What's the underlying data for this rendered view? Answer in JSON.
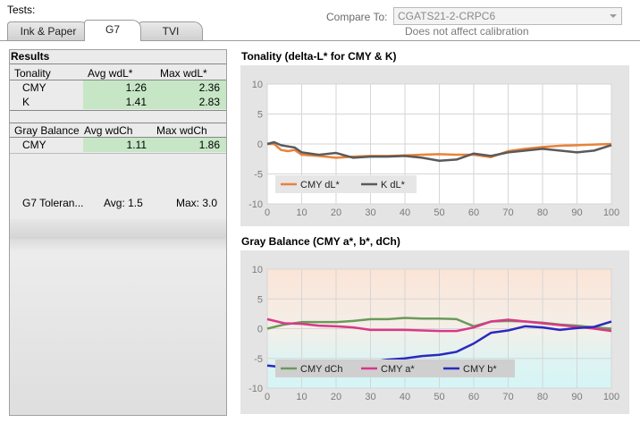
{
  "header": {
    "tests_label": "Tests:",
    "compare_label": "Compare To:",
    "compare_value": "CGATS21-2-CRPC6",
    "compare_note": "Does not affect calibration"
  },
  "tabs": [
    {
      "label": "Ink & Paper",
      "active": false
    },
    {
      "label": "G7",
      "active": true
    },
    {
      "label": "TVI",
      "active": false
    }
  ],
  "results": {
    "title": "Results",
    "tonality": {
      "header": [
        "Tonality",
        "Avg wdL*",
        "Max wdL*"
      ],
      "rows": [
        {
          "label": "CMY",
          "avg": "1.26",
          "max": "2.36"
        },
        {
          "label": "K",
          "avg": "1.41",
          "max": "2.83"
        }
      ]
    },
    "gray_balance": {
      "header": [
        "Gray Balance",
        "Avg wdCh",
        "Max wdCh"
      ],
      "rows": [
        {
          "label": "CMY",
          "avg": "1.11",
          "max": "1.86"
        }
      ]
    },
    "tolerance": {
      "label": "G7 Toleran...",
      "avg": "Avg: 1.5",
      "max": "Max: 3.0"
    }
  },
  "chart_data": [
    {
      "type": "line",
      "title": "Tonality (delta-L* for CMY & K)",
      "xlim": [
        0,
        100
      ],
      "ylim": [
        -10,
        10
      ],
      "xticks": [
        "0",
        "10",
        "20",
        "30",
        "40",
        "50",
        "60",
        "70",
        "80",
        "90",
        "100"
      ],
      "yticks": [
        "10",
        "5",
        "0",
        "-5",
        "-10"
      ],
      "grid": true,
      "legend_position": "lower-left",
      "series": [
        {
          "name": "CMY dL*",
          "color": "#e8823a",
          "x": [
            0,
            2,
            4,
            6,
            8,
            10,
            15,
            20,
            25,
            30,
            35,
            40,
            45,
            50,
            55,
            60,
            65,
            70,
            75,
            80,
            85,
            90,
            95,
            100
          ],
          "y": [
            0,
            0,
            -1,
            -1.2,
            -1,
            -1.8,
            -2,
            -2.3,
            -2.1,
            -2,
            -2,
            -1.9,
            -1.8,
            -1.7,
            -1.8,
            -1.8,
            -2.2,
            -1.2,
            -0.8,
            -0.5,
            -0.3,
            -0.2,
            -0.1,
            0
          ]
        },
        {
          "name": "K dL*",
          "color": "#5a5a5a",
          "x": [
            0,
            2,
            4,
            6,
            8,
            10,
            15,
            20,
            25,
            30,
            35,
            40,
            45,
            50,
            55,
            60,
            65,
            70,
            75,
            80,
            85,
            90,
            95,
            100
          ],
          "y": [
            0,
            0.3,
            -0.2,
            -0.4,
            -0.6,
            -1.4,
            -1.8,
            -1.5,
            -2.3,
            -2.1,
            -2.1,
            -2,
            -2.3,
            -2.8,
            -2.6,
            -1.6,
            -2,
            -1.4,
            -1.1,
            -0.8,
            -1.1,
            -1.4,
            -1.1,
            -0.2
          ]
        }
      ]
    },
    {
      "type": "line",
      "title": "Gray Balance (CMY a*, b*, dCh)",
      "xlim": [
        0,
        100
      ],
      "ylim": [
        -10,
        10
      ],
      "xticks": [
        "0",
        "10",
        "20",
        "30",
        "40",
        "50",
        "60",
        "70",
        "80",
        "90",
        "100"
      ],
      "yticks": [
        "10",
        "5",
        "0",
        "-5",
        "-10"
      ],
      "grid": true,
      "legend_position": "lower-left",
      "series": [
        {
          "name": "CMY dCh",
          "color": "#6a9a5a",
          "x": [
            0,
            5,
            10,
            15,
            20,
            25,
            30,
            35,
            40,
            45,
            50,
            55,
            60,
            65,
            70,
            75,
            80,
            85,
            90,
            95,
            100
          ],
          "y": [
            0,
            0.7,
            1.1,
            1.1,
            1.1,
            1.3,
            1.6,
            1.6,
            1.8,
            1.7,
            1.7,
            1.6,
            0.4,
            1.2,
            1.3,
            1.2,
            1,
            0.7,
            0.5,
            0.2,
            0
          ]
        },
        {
          "name": "CMY a*",
          "color": "#d8388a",
          "x": [
            0,
            5,
            10,
            15,
            20,
            25,
            30,
            35,
            40,
            45,
            50,
            55,
            60,
            65,
            70,
            75,
            80,
            85,
            90,
            95,
            100
          ],
          "y": [
            1.6,
            0.9,
            0.8,
            0.5,
            0.4,
            0.2,
            -0.2,
            -0.2,
            -0.2,
            -0.3,
            -0.4,
            -0.4,
            0.2,
            1.2,
            1.5,
            1.2,
            0.9,
            0.6,
            0.3,
            0,
            -0.4
          ]
        },
        {
          "name": "CMY b*",
          "color": "#2a2abf",
          "x": [
            0,
            5,
            10,
            15,
            20,
            25,
            30,
            35,
            40,
            45,
            50,
            55,
            60,
            65,
            70,
            75,
            80,
            85,
            90,
            95,
            100
          ],
          "y": [
            -6.2,
            -6.5,
            -6.6,
            -6.4,
            -6.2,
            -5.9,
            -5.6,
            -5.2,
            -5,
            -4.6,
            -4.4,
            -3.9,
            -2.5,
            -0.7,
            -0.3,
            0.4,
            0.2,
            -0.2,
            0.1,
            0.3,
            1.2
          ]
        }
      ]
    }
  ]
}
